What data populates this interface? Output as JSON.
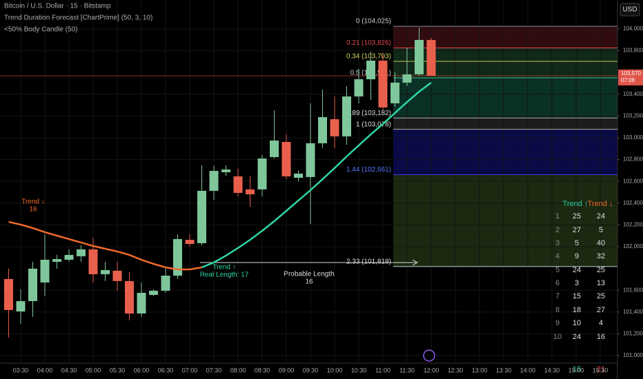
{
  "chart_data": {
    "type": "candlestick",
    "header": [
      "Bitcoin / U.S. Dollar · 15 · Bitstamp",
      "Trend Duration Forecast [ChartPrime] (50, 3, 10)",
      "<50% Body Candle (50)"
    ],
    "currency": "USD",
    "up_color": "#7fc69b",
    "down_color": "#e8604c",
    "grid": true,
    "x": [
      "03:15",
      "03:30",
      "03:45",
      "04:00",
      "04:15",
      "04:30",
      "04:45",
      "05:00",
      "05:15",
      "05:30",
      "05:45",
      "06:00",
      "06:15",
      "06:30",
      "06:45",
      "07:00",
      "07:15",
      "07:30",
      "07:45",
      "08:00",
      "08:15",
      "08:30",
      "08:45",
      "09:00",
      "09:15",
      "09:30",
      "09:45",
      "10:00",
      "10:15",
      "10:30",
      "10:45",
      "11:00",
      "11:15",
      "11:30",
      "11:45",
      "12:00"
    ],
    "open": [
      101703,
      101405,
      101500,
      101671,
      101861,
      101880,
      101912,
      101975,
      101747,
      101779,
      101684,
      101386,
      101557,
      101595,
      101734,
      102063,
      102032,
      102513,
      102684,
      102646,
      102526,
      102526,
      102823,
      102962,
      102633,
      102640,
      102950,
      103171,
      103013,
      103380,
      103538,
      103709,
      103317,
      103507,
      103583,
      103899
    ],
    "high": [
      101798,
      101608,
      101861,
      102114,
      101924,
      101975,
      102013,
      102082,
      101861,
      101861,
      101766,
      101671,
      101608,
      101798,
      102114,
      102114,
      102747,
      102747,
      102747,
      102715,
      102652,
      102842,
      103253,
      103032,
      102700,
      103317,
      103443,
      103380,
      103475,
      103633,
      103791,
      103760,
      103602,
      103823,
      104013,
      103918
    ],
    "low": [
      101165,
      101291,
      101355,
      101545,
      101798,
      101861,
      101861,
      101671,
      101684,
      101595,
      101323,
      101355,
      101545,
      101576,
      101703,
      102000,
      102013,
      102430,
      102650,
      102462,
      102367,
      102462,
      102810,
      102620,
      102600,
      102209,
      102905,
      102905,
      102937,
      103317,
      103348,
      103253,
      103285,
      103475,
      103570,
      103570
    ],
    "close": [
      101418,
      101500,
      101798,
      101880,
      101886,
      101924,
      101975,
      101747,
      101785,
      101684,
      101386,
      101576,
      101595,
      101734,
      102070,
      102025,
      102513,
      102696,
      102709,
      102494,
      102481,
      102810,
      102975,
      102646,
      102671,
      102950,
      103190,
      103013,
      103380,
      103538,
      103709,
      103279,
      103507,
      103583,
      103899,
      103570
    ],
    "lines": [
      {
        "color": "#f26b2a",
        "values": [
          102228,
          102203,
          102171,
          102133,
          102101,
          102070,
          102038,
          102006,
          101981,
          101956,
          101924,
          101880,
          101842,
          101810,
          101791,
          101791,
          101810,
          null,
          null,
          null,
          null,
          null,
          null,
          null,
          null,
          null,
          null,
          null,
          null,
          null,
          null,
          null,
          null,
          null,
          null,
          null
        ]
      },
      {
        "color": "#2fd6a8",
        "values": [
          null,
          null,
          null,
          null,
          null,
          null,
          null,
          null,
          null,
          null,
          null,
          null,
          null,
          null,
          null,
          null,
          101810,
          101855,
          101918,
          101988,
          102063,
          102146,
          102234,
          102329,
          102424,
          102519,
          102620,
          102722,
          102829,
          102931,
          103032,
          103127,
          103228,
          103329,
          103424,
          103507
        ]
      }
    ],
    "ylim": [
      100930,
      104266
    ],
    "yticks": [
      {
        "value": 104000,
        "label": "104,000"
      },
      {
        "value": 103800,
        "label": "103,800"
      },
      {
        "value": 103400,
        "label": "103,400"
      },
      {
        "value": 103200,
        "label": "103,200"
      },
      {
        "value": 103000,
        "label": "103,000"
      },
      {
        "value": 102800,
        "label": "102,800"
      },
      {
        "value": 102600,
        "label": "102,600"
      },
      {
        "value": 102400,
        "label": "102,400"
      },
      {
        "value": 102200,
        "label": "102,200"
      },
      {
        "value": 102000,
        "label": "102,000"
      },
      {
        "value": 101600,
        "label": "101,600"
      },
      {
        "value": 101400,
        "label": "101,400"
      },
      {
        "value": 101200,
        "label": "101,200"
      },
      {
        "value": 101000,
        "label": "101,000"
      }
    ],
    "xticks": [
      "03:30",
      "04:00",
      "04:30",
      "05:00",
      "05:30",
      "06:00",
      "06:30",
      "07:00",
      "07:30",
      "08:00",
      "08:30",
      "09:00",
      "09:30",
      "10:00",
      "10:30",
      "11:00",
      "11:30",
      "12:00",
      "12:30",
      "13:00",
      "13:30",
      "14:00",
      "14:30",
      "15:00",
      "15:30"
    ],
    "levels": [
      {
        "value": 104025,
        "label": "0 (104,025)",
        "color": "#888888",
        "text_color": "#cccccc",
        "zone": "#3a0e12"
      },
      {
        "value": 103826,
        "label": "0.21 (103,826)",
        "color": "#e04848",
        "text_color": "#e04848",
        "zone": "#13301d"
      },
      {
        "value": 103703,
        "label": "0.34 (103,703)",
        "color": "#c8c84a",
        "text_color": "#d8d860",
        "zone": "#13301d"
      },
      {
        "value": 103551,
        "label": "0.5 (103,551)",
        "color": "#3fbf94",
        "text_color": "#cccccc",
        "zone": "#0c3a2d"
      },
      {
        "value": 103182,
        "label": "0.89 (103,182)",
        "color": "#aaaaaa",
        "text_color": "#dddddd",
        "zone": "#222222"
      },
      {
        "value": 103078,
        "label": "1 (103,078)",
        "color": "#aaaaaa",
        "text_color": "#dddddd",
        "zone": "#0c0c52"
      },
      {
        "value": 102661,
        "label": "1.44 (102,661)",
        "color": "#3c3cd0",
        "text_color": "#5577ff",
        "zone": "#1e3012"
      },
      {
        "value": 101818,
        "label": "2.33 (101,818)",
        "color": "#cccccc",
        "text_color": "#dddddd"
      }
    ],
    "annotations": {
      "down": [
        "Trend ↓",
        "16"
      ],
      "up": [
        "Trend ↑",
        "Real Length: 17"
      ],
      "probable": [
        "Probable Length",
        "16"
      ]
    },
    "table": {
      "header": [
        "Trend ↑",
        "Trend ↓"
      ],
      "rows": [
        [
          1,
          25,
          24
        ],
        [
          2,
          27,
          5
        ],
        [
          3,
          5,
          40
        ],
        [
          4,
          9,
          32
        ],
        [
          5,
          24,
          25
        ],
        [
          6,
          3,
          13
        ],
        [
          7,
          15,
          25
        ],
        [
          8,
          18,
          27
        ],
        [
          9,
          10,
          4
        ],
        [
          10,
          24,
          16
        ]
      ],
      "totals": [
        16,
        21
      ]
    },
    "last_price": {
      "value": 103570,
      "label": "103,570",
      "countdown": "07:08"
    }
  }
}
